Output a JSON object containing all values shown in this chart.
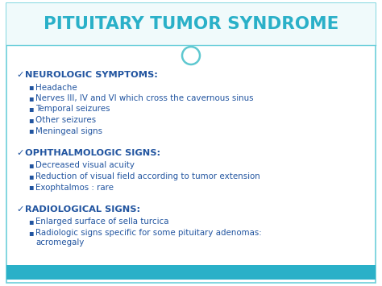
{
  "title": "PITUITARY TUMOR SYNDROME",
  "title_color": "#2ab0c8",
  "title_fontsize": 15.5,
  "bg_color": "#ffffff",
  "border_color": "#6dcfda",
  "bottom_bar_color": "#2ab0c8",
  "circle_color": "#5ec8d0",
  "heading_color": "#2255a0",
  "bullet_color": "#2255a0",
  "heading_fs": 8.2,
  "bullet_fs": 7.4,
  "sections": [
    {
      "heading": "NEUROLOGIC SYMPTOMS:",
      "bullets": [
        "Headache",
        "Nerves III, IV and VI which cross the cavernous sinus",
        "Temporal seizures",
        "Other seizures",
        "Meningeal signs"
      ]
    },
    {
      "heading": "OPHTHALMOLOGIC SIGNS:",
      "bullets": [
        "Decreased visual acuity",
        "Reduction of visual field according to tumor extension",
        "Exophtalmos : rare"
      ]
    },
    {
      "heading": "RADIOLOGICAL SIGNS:",
      "bullets": [
        "Enlarged surface of sella turcica",
        "Radiologic signs specific for some pituitary adenomas:\nacromegaly"
      ]
    }
  ],
  "fig_width": 4.74,
  "fig_height": 3.55,
  "dpi": 100
}
